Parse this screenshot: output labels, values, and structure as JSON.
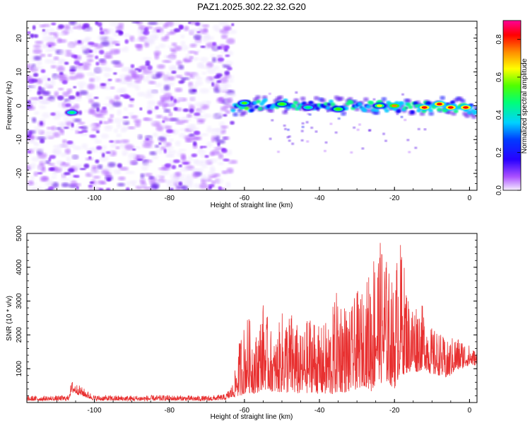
{
  "title": "PAZ1.2025.302.22.32.G20",
  "chart_data": [
    {
      "type": "heatmap",
      "title": "PAZ1.2025.302.22.32.G20",
      "xlabel": "Height of straight line (km)",
      "ylabel": "Frequency (Hz)",
      "xlim": [
        -118,
        2
      ],
      "ylim": [
        -25,
        25
      ],
      "xticks": [
        -100,
        -80,
        -60,
        -40,
        -20,
        0
      ],
      "yticks": [
        -20,
        -10,
        0,
        10,
        20
      ],
      "colorbar": {
        "label": "Normalized spectral amplitude",
        "range": [
          0.0,
          0.9
        ],
        "ticks": [
          0.0,
          0.2,
          0.4,
          0.6,
          0.8
        ],
        "colors": [
          "#f0e8ff",
          "#b060ff",
          "#5000e8",
          "#0000ff",
          "#00c8ff",
          "#00ff80",
          "#40ff00",
          "#ffff00",
          "#ff8000",
          "#ff0000",
          "#ff0080"
        ]
      },
      "noise_region_x": [
        -118,
        -63
      ],
      "signal_track": {
        "x": [
          -63,
          -55,
          -45,
          -35,
          -25,
          -15,
          -5,
          2
        ],
        "freq": [
          -1.0,
          0.5,
          0.5,
          0.0,
          0.0,
          -0.5,
          0.0,
          -1.0
        ]
      },
      "hotspots": [
        {
          "x": -106,
          "freq": -2,
          "amp": 0.45
        },
        {
          "x": -60,
          "freq": 0.8,
          "amp": 0.5
        },
        {
          "x": -50,
          "freq": 0.5,
          "amp": 0.55
        },
        {
          "x": -43,
          "freq": -0.5,
          "amp": 0.45
        },
        {
          "x": -35,
          "freq": -1.0,
          "amp": 0.55
        },
        {
          "x": -24,
          "freq": 0.0,
          "amp": 0.65
        },
        {
          "x": -20,
          "freq": 0.0,
          "amp": 0.75
        },
        {
          "x": -12,
          "freq": -0.5,
          "amp": 0.8
        },
        {
          "x": -8,
          "freq": 0.5,
          "amp": 0.85
        },
        {
          "x": -5,
          "freq": -0.5,
          "amp": 0.8
        },
        {
          "x": -1,
          "freq": -0.5,
          "amp": 0.85
        }
      ]
    },
    {
      "type": "line",
      "xlabel": "Height of straight line (km)",
      "ylabel": "SNR (10 * v/v)",
      "xlim": [
        -118,
        2
      ],
      "ylim": [
        0,
        5000
      ],
      "xticks": [
        -100,
        -80,
        -60,
        -40,
        -20,
        0
      ],
      "yticks": [
        1000,
        2000,
        3000,
        4000,
        5000
      ],
      "color": "#e83030",
      "series": [
        {
          "name": "SNR",
          "x": [
            -118,
            -110,
            -107,
            -106,
            -100,
            -90,
            -80,
            -70,
            -65,
            -63,
            -61,
            -59,
            -57,
            -55,
            -52,
            -50,
            -47,
            -45,
            -42,
            -40,
            -37,
            -35,
            -32,
            -30,
            -28,
            -26,
            -25,
            -24,
            -23,
            -22,
            -20,
            -19,
            -18,
            -16,
            -14,
            -12,
            -10,
            -8,
            -6,
            -4,
            -2,
            0,
            2
          ],
          "envelope": [
            200,
            200,
            220,
            650,
            220,
            210,
            220,
            200,
            250,
            600,
            2100,
            2600,
            2000,
            3000,
            1800,
            2700,
            2700,
            2000,
            2800,
            2200,
            2600,
            3500,
            2700,
            3300,
            3300,
            4400,
            5000,
            4700,
            5000,
            4200,
            3400,
            5000,
            4600,
            3000,
            3100,
            2800,
            2200,
            2100,
            1800,
            2000,
            1900,
            1700,
            1500
          ],
          "floor": [
            50,
            60,
            60,
            300,
            60,
            50,
            60,
            50,
            80,
            150,
            200,
            300,
            250,
            400,
            300,
            300,
            250,
            250,
            300,
            250,
            200,
            300,
            300,
            400,
            500,
            300,
            500,
            700,
            400,
            600,
            400,
            700,
            800,
            900,
            900,
            1000,
            800,
            800,
            700,
            900,
            1000,
            1100,
            1100
          ]
        }
      ]
    }
  ]
}
